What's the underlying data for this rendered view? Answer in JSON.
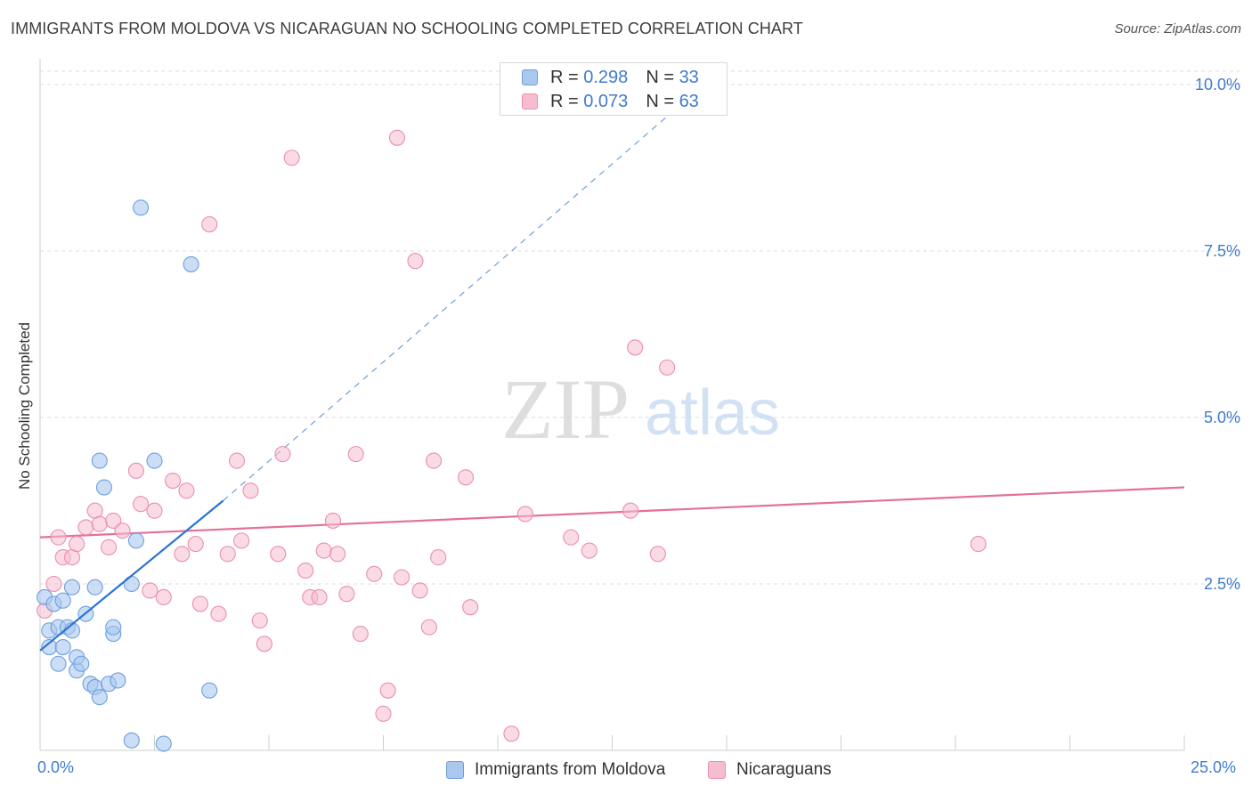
{
  "title": "IMMIGRANTS FROM MOLDOVA VS NICARAGUAN NO SCHOOLING COMPLETED CORRELATION CHART",
  "source": "Source: ZipAtlas.com",
  "watermark": {
    "zip": "ZIP",
    "atlas": "atlas"
  },
  "legend_stats": [
    {
      "r_label": "R =",
      "r_value": "0.298",
      "n_label": "N =",
      "n_value": "33"
    },
    {
      "r_label": "R =",
      "r_value": "0.073",
      "n_label": "N =",
      "n_value": "63"
    }
  ],
  "colors": {
    "blue_fill": "#a9c8f0",
    "blue_stroke": "#6e9fdc",
    "blue_line": "#2b74d4",
    "pink_fill": "#f6bdd0",
    "pink_stroke": "#e98fae",
    "pink_line": "#e4709a",
    "axis_text": "#3f7bd1",
    "grid": "#dcdcdc"
  },
  "chart_data": {
    "type": "scatter",
    "title": "IMMIGRANTS FROM MOLDOVA VS NICARAGUAN NO SCHOOLING COMPLETED CORRELATION CHART",
    "xlabel": "",
    "ylabel": "No Schooling Completed",
    "xlim": [
      0,
      25
    ],
    "ylim": [
      0,
      10.2
    ],
    "x_tick_labels": [
      "0.0%",
      "25.0%"
    ],
    "y_ticks": [
      2.5,
      5.0,
      7.5,
      10.0
    ],
    "y_tick_labels": [
      "2.5%",
      "5.0%",
      "7.5%",
      "10.0%"
    ],
    "grid": true,
    "legend_position": "bottom",
    "series": [
      {
        "name": "Immigrants from Moldova",
        "color": "#a9c8f0",
        "R": 0.298,
        "N": 33,
        "trend": {
          "x": [
            0,
            4.0
          ],
          "y": [
            1.5,
            3.75
          ],
          "extended_x": [
            4.0,
            14.0
          ],
          "extended_y": [
            3.75,
            9.7
          ]
        },
        "points": [
          [
            0.1,
            2.3
          ],
          [
            0.2,
            1.8
          ],
          [
            0.2,
            1.55
          ],
          [
            0.3,
            2.2
          ],
          [
            0.4,
            1.85
          ],
          [
            0.4,
            1.3
          ],
          [
            0.5,
            2.25
          ],
          [
            0.5,
            1.55
          ],
          [
            0.6,
            1.85
          ],
          [
            0.7,
            1.8
          ],
          [
            0.7,
            2.45
          ],
          [
            0.8,
            1.2
          ],
          [
            0.8,
            1.4
          ],
          [
            0.9,
            1.3
          ],
          [
            1.0,
            2.05
          ],
          [
            1.1,
            1.0
          ],
          [
            1.2,
            2.45
          ],
          [
            1.2,
            0.95
          ],
          [
            1.3,
            4.35
          ],
          [
            1.3,
            0.8
          ],
          [
            1.4,
            3.95
          ],
          [
            1.5,
            1.0
          ],
          [
            1.6,
            1.75
          ],
          [
            1.6,
            1.85
          ],
          [
            1.7,
            1.05
          ],
          [
            2.0,
            2.5
          ],
          [
            2.0,
            0.15
          ],
          [
            2.1,
            3.15
          ],
          [
            2.2,
            8.15
          ],
          [
            2.5,
            4.35
          ],
          [
            2.7,
            0.1
          ],
          [
            3.3,
            7.3
          ],
          [
            3.7,
            0.9
          ]
        ]
      },
      {
        "name": "Nicaraguans",
        "color": "#f6bdd0",
        "R": 0.073,
        "N": 63,
        "trend": {
          "x": [
            0,
            25
          ],
          "y": [
            3.2,
            3.95
          ]
        },
        "points": [
          [
            0.1,
            2.1
          ],
          [
            0.3,
            2.5
          ],
          [
            0.4,
            3.2
          ],
          [
            0.5,
            2.9
          ],
          [
            0.7,
            2.9
          ],
          [
            0.8,
            3.1
          ],
          [
            1.0,
            3.35
          ],
          [
            1.2,
            3.6
          ],
          [
            1.3,
            3.4
          ],
          [
            1.5,
            3.05
          ],
          [
            1.6,
            3.45
          ],
          [
            1.8,
            3.3
          ],
          [
            2.1,
            4.2
          ],
          [
            2.2,
            3.7
          ],
          [
            2.4,
            2.4
          ],
          [
            2.5,
            3.6
          ],
          [
            2.7,
            2.3
          ],
          [
            2.9,
            4.05
          ],
          [
            3.1,
            2.95
          ],
          [
            3.2,
            3.9
          ],
          [
            3.4,
            3.1
          ],
          [
            3.5,
            2.2
          ],
          [
            3.7,
            7.9
          ],
          [
            3.9,
            2.05
          ],
          [
            4.1,
            2.95
          ],
          [
            4.3,
            4.35
          ],
          [
            4.4,
            3.15
          ],
          [
            4.6,
            3.9
          ],
          [
            4.8,
            1.95
          ],
          [
            4.9,
            1.6
          ],
          [
            5.2,
            2.95
          ],
          [
            5.3,
            4.45
          ],
          [
            5.5,
            8.9
          ],
          [
            5.8,
            2.7
          ],
          [
            5.9,
            2.3
          ],
          [
            6.1,
            2.3
          ],
          [
            6.2,
            3.0
          ],
          [
            6.4,
            3.45
          ],
          [
            6.5,
            2.95
          ],
          [
            6.7,
            2.35
          ],
          [
            6.9,
            4.45
          ],
          [
            7.0,
            1.75
          ],
          [
            7.3,
            2.65
          ],
          [
            7.5,
            0.55
          ],
          [
            7.6,
            0.9
          ],
          [
            7.8,
            9.2
          ],
          [
            7.9,
            2.6
          ],
          [
            8.2,
            7.35
          ],
          [
            8.3,
            2.4
          ],
          [
            8.5,
            1.85
          ],
          [
            8.6,
            4.35
          ],
          [
            8.7,
            2.9
          ],
          [
            9.3,
            4.1
          ],
          [
            9.4,
            2.15
          ],
          [
            10.3,
            0.25
          ],
          [
            10.6,
            3.55
          ],
          [
            11.6,
            3.2
          ],
          [
            12.0,
            3.0
          ],
          [
            12.9,
            3.6
          ],
          [
            13.0,
            6.05
          ],
          [
            13.5,
            2.95
          ],
          [
            13.7,
            5.75
          ],
          [
            20.5,
            3.1
          ]
        ]
      }
    ]
  }
}
